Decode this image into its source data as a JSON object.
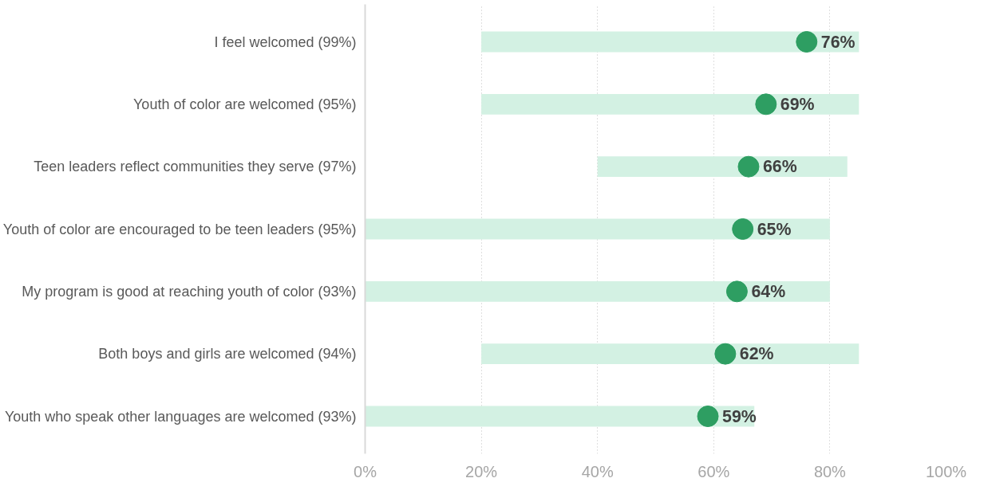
{
  "chart_data": {
    "type": "bar",
    "orientation": "horizontal",
    "categories": [
      "I feel welcomed (99%)",
      "Youth of color are welcomed (95%)",
      "Teen leaders reflect communities they serve (97%)",
      "Youth of color are encouraged to be teen leaders (95%)",
      "My program is good at reaching youth of color (93%)",
      "Both boys and girls are welcomed (94%)",
      "Youth who speak other languages are welcomed (93%)"
    ],
    "series": [
      {
        "color": "#d3f1e3",
        "values": [
          65,
          65,
          43,
          80,
          80,
          65,
          67
        ],
        "base": [
          20,
          20,
          40,
          0,
          0,
          20,
          0
        ]
      },
      {
        "type": "scatter",
        "color": "#2e9e62",
        "values": [
          76,
          69,
          66,
          65,
          64,
          62,
          59
        ],
        "value_labels": [
          "76%",
          "69%",
          "66%",
          "65%",
          "64%",
          "62%",
          "59%"
        ]
      }
    ],
    "xlim": [
      0,
      100
    ],
    "xticks": [
      {
        "value": 0,
        "label": "0%"
      },
      {
        "value": 20,
        "label": "20%"
      },
      {
        "value": 40,
        "label": "40%"
      },
      {
        "value": 60,
        "label": "60%"
      },
      {
        "value": 80,
        "label": "80%"
      },
      {
        "value": 100,
        "label": "100%"
      }
    ],
    "grid": "x",
    "marker": "circle"
  }
}
